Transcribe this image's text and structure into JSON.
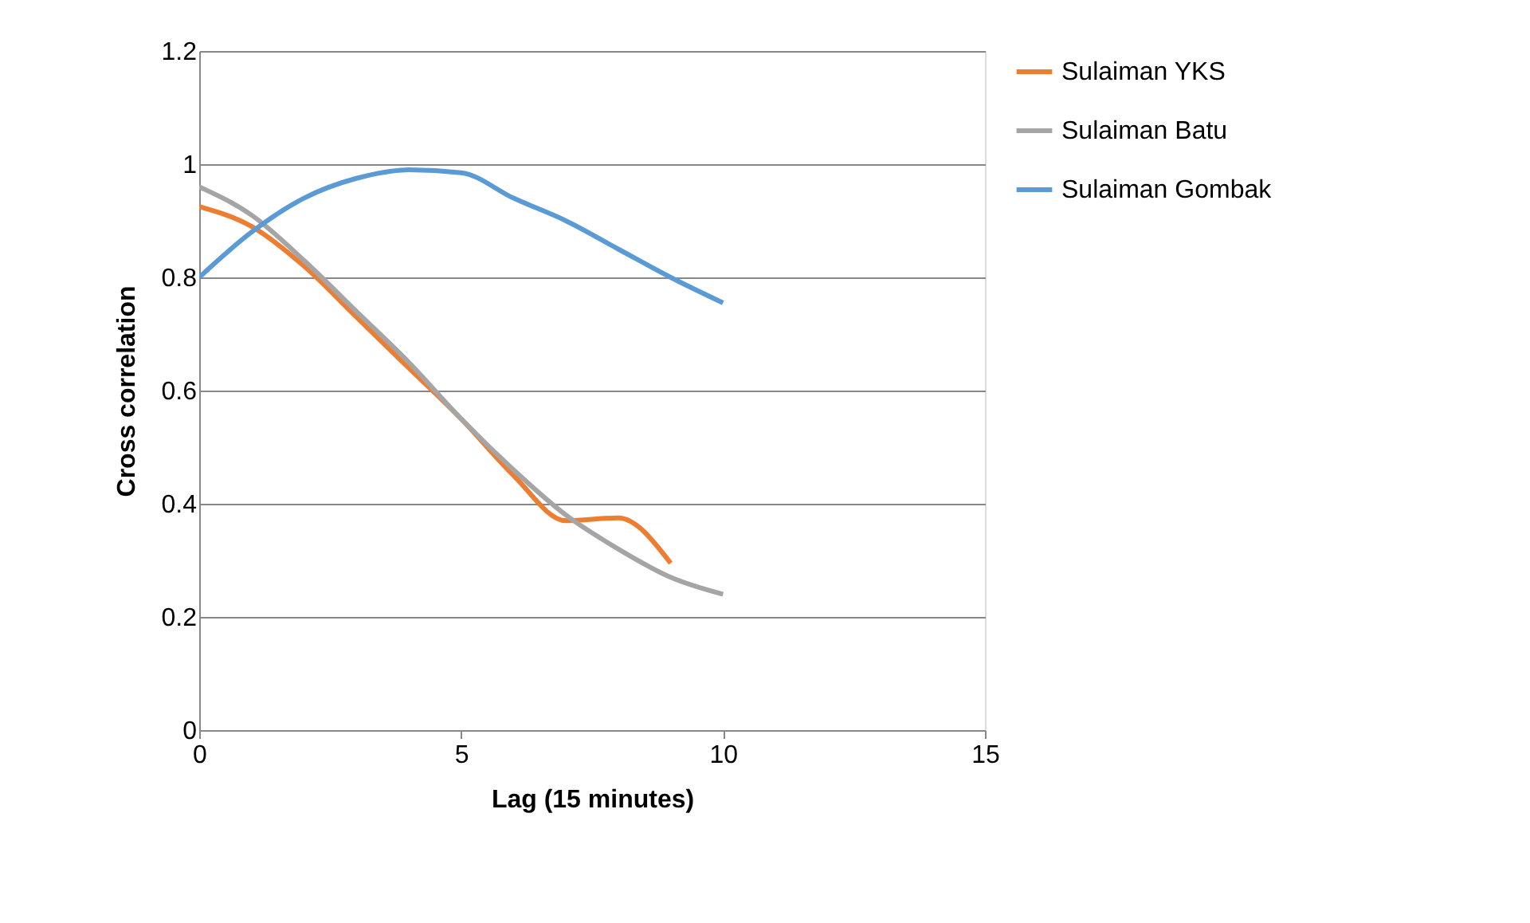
{
  "chart_data": {
    "type": "line",
    "xlabel": "Lag (15 minutes)",
    "ylabel": "Cross correlation",
    "xlim": [
      0,
      15
    ],
    "xticks": [
      0,
      5,
      10,
      15
    ],
    "ylim": [
      0,
      1.2
    ],
    "yticks": [
      0,
      0.2,
      0.4,
      0.6,
      0.8,
      1,
      1.2
    ],
    "grid": "y",
    "legend": "right",
    "marker": "none",
    "line_style": "solid",
    "series": [
      {
        "name": "Sulaiman YKS",
        "color": "#ed7d31",
        "x": [
          0,
          1,
          2,
          3,
          4,
          5,
          6,
          7,
          8,
          9
        ],
        "values": [
          0.925,
          0.89,
          0.82,
          0.73,
          0.64,
          0.55,
          0.45,
          0.37,
          0.375,
          0.295
        ]
      },
      {
        "name": "Sulaiman Batu",
        "color": "#a5a5a5",
        "x": [
          0,
          1,
          2,
          3,
          4,
          5,
          6,
          7,
          8,
          9,
          10
        ],
        "values": [
          0.96,
          0.91,
          0.83,
          0.74,
          0.65,
          0.55,
          0.46,
          0.38,
          0.32,
          0.27,
          0.24
        ]
      },
      {
        "name": "Sulaiman Gombak",
        "color": "#5b9bd5",
        "x": [
          0,
          1,
          2,
          3,
          4,
          5,
          6,
          7,
          8,
          9,
          10
        ],
        "values": [
          0.8,
          0.88,
          0.94,
          0.975,
          0.99,
          0.985,
          0.94,
          0.9,
          0.85,
          0.8,
          0.755
        ]
      }
    ]
  }
}
